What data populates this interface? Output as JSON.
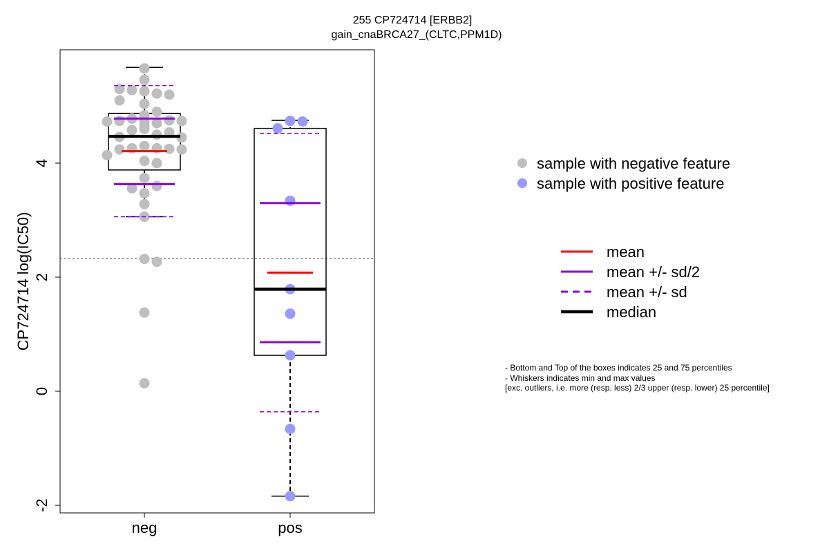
{
  "chart_data": {
    "type": "box",
    "title": "255 CP724714 [ERBB2]",
    "subtitle": "gain_cnaBRCA27_(CLTC,PPM1D)",
    "xlabel": "",
    "ylabel": "CP724714 log(IC50)",
    "categories": [
      "neg",
      "pos"
    ],
    "ylim": [
      -2.1,
      5.9
    ],
    "yticks": [
      -2,
      0,
      2,
      4
    ],
    "reference_line_y": 2.33,
    "groups": [
      {
        "category": "neg",
        "color": "#bebebe",
        "min": 3.06,
        "q1": 3.88,
        "median": 4.47,
        "q3": 4.87,
        "max": 5.68,
        "mean": 4.21,
        "mean_plus_half_sd": 4.78,
        "mean_minus_half_sd": 3.63,
        "mean_plus_sd": 5.36,
        "mean_minus_sd": 3.06,
        "points": [
          5.66,
          5.46,
          5.26,
          5.22,
          5.28,
          5.2,
          5.3,
          5.04,
          5.1,
          4.9,
          4.84,
          4.78,
          4.75,
          4.74,
          4.74,
          4.73,
          4.72,
          4.7,
          4.65,
          4.6,
          4.58,
          4.54,
          4.5,
          4.46,
          4.45,
          4.3,
          4.26,
          4.26,
          4.25,
          4.24,
          4.24,
          4.14,
          4.04,
          4.0,
          3.74,
          3.6,
          3.56,
          3.47,
          3.28,
          3.06,
          2.32,
          2.27,
          1.38,
          0.14
        ]
      },
      {
        "category": "pos",
        "color": "#9999ff",
        "min": -1.84,
        "q1": 0.63,
        "median": 1.79,
        "q3": 4.61,
        "max": 4.75,
        "mean": 2.08,
        "mean_plus_half_sd": 3.3,
        "mean_minus_half_sd": 0.86,
        "mean_plus_sd": 4.52,
        "mean_minus_sd": -0.36,
        "points": [
          4.74,
          4.73,
          4.61,
          3.34,
          1.79,
          1.36,
          0.63,
          -0.66,
          -1.84
        ]
      }
    ],
    "legend_points": [
      {
        "label": "sample with negative feature",
        "color": "#bebebe"
      },
      {
        "label": "sample with positive feature",
        "color": "#9999ff"
      }
    ],
    "legend_lines": [
      {
        "label": "mean",
        "color": "#ff0000",
        "style": "solid"
      },
      {
        "label": "mean +/- sd/2",
        "color": "#8b00e8",
        "style": "solid"
      },
      {
        "label": "mean +/- sd",
        "color": "#8b00e8",
        "style": "dashed"
      },
      {
        "label": "median",
        "color": "#000000",
        "style": "solid-thick"
      }
    ],
    "notes": [
      "- Bottom and Top of the boxes indicates 25 and 75 percentiles",
      "- Whiskers indicates min and max values",
      "[exc. outliers, i.e. more (resp. less) 2/3 upper (resp. lower) 25 percentile]"
    ]
  }
}
